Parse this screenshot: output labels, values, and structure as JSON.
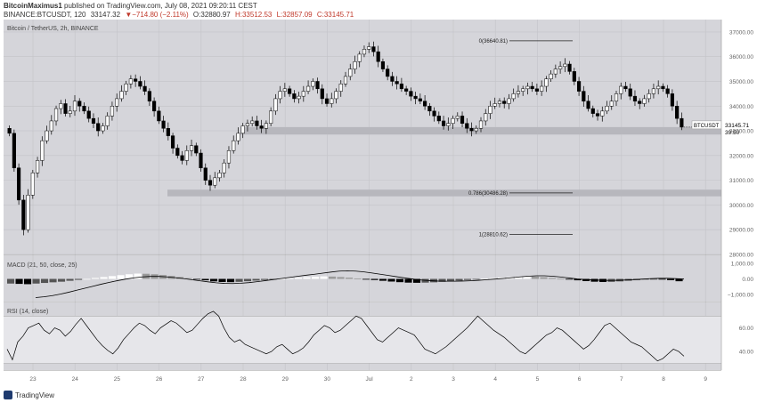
{
  "header": {
    "author": "BitcoinMaximus1",
    "published": "published on TradingView.com, July 08, 2021 09:20:11 CEST",
    "symbol": "BINANCE:BTCUSDT, 120",
    "last": "33147.32",
    "change": "▼−714.80 (−2.11%)",
    "o": "O:32880.97",
    "h": "H:33512.53",
    "l": "L:32857.09",
    "c": "C:33145.71"
  },
  "footer": {
    "brand": "TradingView"
  },
  "chart_data": [
    {
      "type": "candlestick",
      "title": "Bitcoin / TetherUS, 2h, BINANCE",
      "ylim": [
        28000,
        37500
      ],
      "y_ticks": [
        28000,
        29000,
        30000,
        31000,
        32000,
        33000,
        34000,
        35000,
        36000,
        37000
      ],
      "y_tick_labels": [
        "28000.00",
        "29000.00",
        "30000.00",
        "31000.00",
        "32000.00",
        "33000.00",
        "34000.00",
        "35000.00",
        "36000.00",
        "37000.00"
      ],
      "x_tick_labels": [
        "23",
        "24",
        "25",
        "26",
        "27",
        "28",
        "29",
        "30",
        "Jul",
        "2",
        "3",
        "4",
        "5",
        "6",
        "7",
        "8",
        "9"
      ],
      "price_label": {
        "name": "BTCUSDT",
        "value": "33145.71",
        "countdown": "39:50"
      },
      "fib_levels": [
        {
          "label": "0(36640.81)",
          "value": 36640.81
        },
        {
          "label": "0.786(30486.28)",
          "value": 30486.28
        },
        {
          "label": "1(28810.62)",
          "value": 28810.62
        }
      ],
      "support_zones": [
        {
          "from": 32850,
          "to": 33150
        },
        {
          "from": 30350,
          "to": 30620
        }
      ],
      "close_series": [
        32900,
        31500,
        30200,
        29000,
        30400,
        31300,
        31800,
        32600,
        33000,
        33400,
        33900,
        34100,
        33700,
        33800,
        34200,
        34000,
        33800,
        33500,
        33300,
        33000,
        33200,
        33600,
        34000,
        34300,
        34600,
        34900,
        35100,
        35000,
        34800,
        34600,
        34200,
        33800,
        33400,
        33100,
        32800,
        32300,
        32000,
        31800,
        32200,
        32400,
        32100,
        31500,
        31000,
        30800,
        31100,
        31300,
        31700,
        32200,
        32600,
        32900,
        33200,
        33300,
        33400,
        33200,
        33100,
        33300,
        33800,
        34300,
        34600,
        34700,
        34500,
        34300,
        34400,
        34600,
        34800,
        35000,
        34700,
        34300,
        34100,
        34300,
        34600,
        34900,
        35200,
        35500,
        35800,
        36100,
        36300,
        36400,
        36200,
        35800,
        35500,
        35200,
        35000,
        34900,
        34700,
        34600,
        34400,
        34300,
        34200,
        34000,
        33800,
        33600,
        33400,
        33200,
        33300,
        33500,
        33600,
        33300,
        33100,
        33000,
        33100,
        33400,
        33700,
        34000,
        34100,
        34200,
        34100,
        34300,
        34500,
        34600,
        34700,
        34800,
        34700,
        34600,
        34800,
        35100,
        35300,
        35500,
        35600,
        35700,
        35400,
        35000,
        34600,
        34200,
        33900,
        33700,
        33600,
        33800,
        34000,
        34200,
        34500,
        34800,
        34700,
        34400,
        34200,
        34100,
        34300,
        34500,
        34700,
        34800,
        34700,
        34500,
        34000,
        33500,
        33150
      ]
    },
    {
      "type": "histogram",
      "title": "MACD (21, 50, close, 25)",
      "y_tick_labels": [
        "1,000.00",
        "0.00",
        "−1,000.00"
      ],
      "ylim": [
        -1400,
        1400
      ],
      "macd_line": [
        -1200,
        -1150,
        -1080,
        -980,
        -860,
        -730,
        -600,
        -470,
        -340,
        -220,
        -110,
        -10,
        70,
        130,
        160,
        160,
        130,
        80,
        20,
        -50,
        -120,
        -190,
        -250,
        -290,
        -300,
        -280,
        -240,
        -180,
        -110,
        -40,
        30,
        100,
        170,
        240,
        300,
        370,
        440,
        500,
        520,
        500,
        450,
        380,
        300,
        220,
        140,
        60,
        -10,
        -70,
        -110,
        -140,
        -150,
        -150,
        -140,
        -120,
        -90,
        -50,
        -10,
        30,
        80,
        130,
        170,
        200,
        200,
        170,
        120,
        60,
        0,
        -40,
        -70,
        -90,
        -100,
        -90,
        -70,
        -40,
        -10,
        20,
        40,
        40,
        20,
        -10
      ],
      "hist_values": [
        -300,
        -320,
        -340,
        -300,
        -260,
        -220,
        -180,
        -120,
        -60,
        0,
        60,
        120,
        180,
        240,
        300,
        340,
        330,
        300,
        250,
        190,
        120,
        50,
        -20,
        -90,
        -160,
        -200,
        -210,
        -190,
        -150,
        -110,
        -70,
        -30,
        10,
        40,
        80,
        110,
        140,
        160,
        150,
        120,
        80,
        30,
        -20,
        -70,
        -120,
        -170,
        -210,
        -240,
        -250,
        -240,
        -220,
        -190,
        -150,
        -110,
        -70,
        -30,
        10,
        50,
        90,
        120,
        150,
        170,
        150,
        110,
        60,
        10,
        -40,
        -90,
        -140,
        -180,
        -200,
        -190,
        -160,
        -120,
        -80,
        -40,
        -20,
        -40,
        -80,
        -150
      ]
    },
    {
      "type": "line",
      "title": "RSI (14, close)",
      "y_tick_labels": [
        "60.00",
        "40.00"
      ],
      "ylim": [
        25,
        80
      ],
      "bands": [
        30,
        70
      ],
      "values": [
        42,
        33,
        48,
        53,
        60,
        62,
        64,
        58,
        55,
        60,
        58,
        53,
        57,
        63,
        68,
        62,
        56,
        50,
        45,
        41,
        38,
        43,
        50,
        55,
        60,
        64,
        62,
        58,
        55,
        60,
        63,
        66,
        64,
        60,
        56,
        58,
        63,
        68,
        72,
        74,
        70,
        60,
        52,
        48,
        50,
        46,
        44,
        42,
        40,
        38,
        40,
        44,
        46,
        42,
        38,
        40,
        43,
        48,
        54,
        58,
        62,
        60,
        56,
        58,
        62,
        66,
        70,
        68,
        62,
        56,
        50,
        48,
        52,
        56,
        60,
        58,
        56,
        54,
        48,
        42,
        40,
        38,
        41,
        44,
        48,
        52,
        56,
        60,
        65,
        70,
        66,
        62,
        58,
        55,
        52,
        48,
        44,
        40,
        38,
        42,
        46,
        50,
        54,
        56,
        60,
        58,
        54,
        50,
        46,
        42,
        45,
        50,
        56,
        62,
        64,
        60,
        56,
        52,
        48,
        46,
        44,
        40,
        36,
        32,
        34,
        38,
        42,
        40,
        36
      ]
    }
  ]
}
